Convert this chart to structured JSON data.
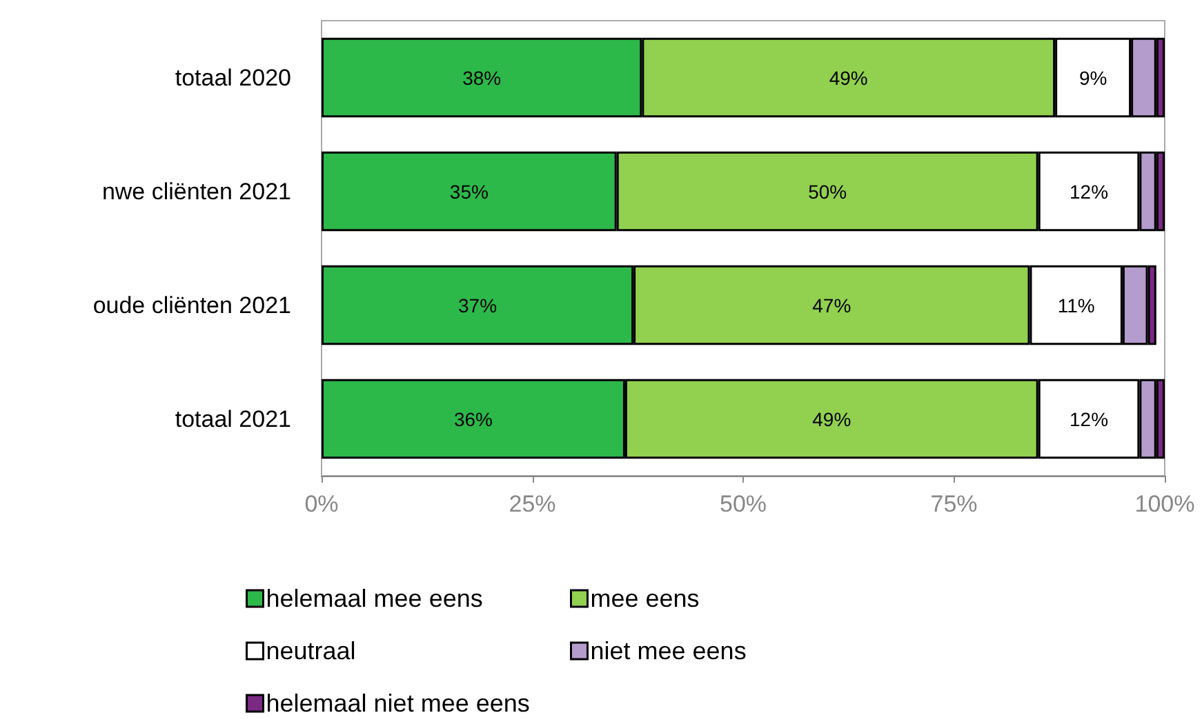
{
  "chart_data": {
    "type": "bar",
    "orientation": "horizontal",
    "stacked": true,
    "categories": [
      "totaal 2020",
      "nwe cliënten 2021",
      "oude cliënten 2021",
      "totaal 2021"
    ],
    "series": [
      {
        "name": "helemaal mee eens",
        "color": "#2db84a",
        "values": [
          38,
          35,
          37,
          36
        ],
        "value_labels": [
          "38%",
          "35%",
          "37%",
          "36%"
        ]
      },
      {
        "name": "mee eens",
        "color": "#92d050",
        "values": [
          49,
          50,
          47,
          49
        ],
        "value_labels": [
          "49%",
          "50%",
          "47%",
          "49%"
        ]
      },
      {
        "name": "neutraal",
        "color": "#ffffff",
        "values": [
          9,
          12,
          11,
          12
        ],
        "value_labels": [
          "9%",
          "12%",
          "11%",
          "12%"
        ]
      },
      {
        "name": "niet mee eens",
        "color": "#b49ccc",
        "values": [
          3,
          2,
          3,
          2
        ]
      },
      {
        "name": "helemaal niet mee eens",
        "color": "#7b2a84",
        "values": [
          1,
          1,
          1,
          1
        ]
      }
    ],
    "xlim": [
      0,
      100
    ],
    "xticks": [
      {
        "value": 0,
        "label": "0%"
      },
      {
        "value": 25,
        "label": "25%"
      },
      {
        "value": 50,
        "label": "50%"
      },
      {
        "value": 75,
        "label": "75%"
      },
      {
        "value": 100,
        "label": "100%"
      }
    ],
    "grid": false,
    "legend": "bottom"
  }
}
